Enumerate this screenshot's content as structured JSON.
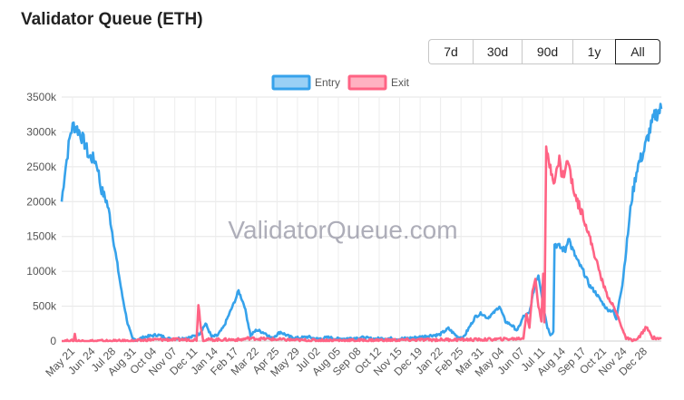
{
  "page_title": "Validator Queue (ETH)",
  "range_buttons": [
    "7d",
    "30d",
    "90d",
    "1y",
    "All"
  ],
  "selected_range": "All",
  "watermark": "ValidatorQueue.com",
  "chart_data": {
    "type": "line",
    "title": "Validator Queue (ETH)",
    "ylim": [
      0,
      3500000
    ],
    "y_ticks": [
      "0",
      "500k",
      "1000k",
      "1500k",
      "2000k",
      "2500k",
      "3000k",
      "3500k"
    ],
    "x_ticks": [
      "May 21",
      "Jun 24",
      "Jul 28",
      "Aug 31",
      "Oct 04",
      "Nov 07",
      "Dec 11",
      "Jan 14",
      "Feb 17",
      "Mar 22",
      "Apr 25",
      "May 29",
      "Jul 02",
      "Aug 05",
      "Sep 08",
      "Oct 12",
      "Nov 15",
      "Dec 19",
      "Jan 22",
      "Feb 25",
      "Mar 31",
      "May 04",
      "Jun 07",
      "Jul 11",
      "Aug 14",
      "Sep 17",
      "Oct 21",
      "Nov 24",
      "Dec 28"
    ],
    "grid": true,
    "legend_position": "top",
    "x_index_range": [
      0,
      1000
    ],
    "series": [
      {
        "name": "Entry",
        "color": "#36a2eb",
        "fill": "#9ad0f5",
        "points": [
          [
            0,
            2000000
          ],
          [
            5,
            2400000
          ],
          [
            10,
            2700000
          ],
          [
            15,
            3000000
          ],
          [
            20,
            3100000
          ],
          [
            30,
            3000000
          ],
          [
            35,
            2900000
          ],
          [
            40,
            2800000
          ],
          [
            45,
            2650000
          ],
          [
            55,
            2600000
          ],
          [
            60,
            2500000
          ],
          [
            65,
            2200000
          ],
          [
            75,
            2000000
          ],
          [
            80,
            1800000
          ],
          [
            90,
            1250000
          ],
          [
            100,
            700000
          ],
          [
            110,
            250000
          ],
          [
            118,
            30000
          ],
          [
            125,
            20000
          ],
          [
            140,
            60000
          ],
          [
            160,
            90000
          ],
          [
            180,
            30000
          ],
          [
            200,
            40000
          ],
          [
            215,
            50000
          ],
          [
            230,
            110000
          ],
          [
            240,
            250000
          ],
          [
            250,
            60000
          ],
          [
            260,
            80000
          ],
          [
            270,
            200000
          ],
          [
            280,
            400000
          ],
          [
            290,
            600000
          ],
          [
            295,
            720000
          ],
          [
            305,
            500000
          ],
          [
            315,
            80000
          ],
          [
            325,
            160000
          ],
          [
            340,
            110000
          ],
          [
            350,
            40000
          ],
          [
            365,
            130000
          ],
          [
            380,
            60000
          ],
          [
            395,
            40000
          ],
          [
            410,
            60000
          ],
          [
            425,
            30000
          ],
          [
            445,
            50000
          ],
          [
            460,
            30000
          ],
          [
            480,
            40000
          ],
          [
            500,
            50000
          ],
          [
            520,
            30000
          ],
          [
            540,
            40000
          ],
          [
            560,
            30000
          ],
          [
            580,
            40000
          ],
          [
            600,
            60000
          ],
          [
            615,
            80000
          ],
          [
            630,
            90000
          ],
          [
            645,
            180000
          ],
          [
            660,
            60000
          ],
          [
            670,
            50000
          ],
          [
            680,
            200000
          ],
          [
            690,
            350000
          ],
          [
            700,
            400000
          ],
          [
            710,
            330000
          ],
          [
            720,
            400000
          ],
          [
            730,
            500000
          ],
          [
            740,
            280000
          ],
          [
            750,
            230000
          ],
          [
            760,
            150000
          ],
          [
            770,
            350000
          ],
          [
            780,
            400000
          ],
          [
            790,
            850000
          ],
          [
            795,
            950000
          ],
          [
            800,
            700000
          ],
          [
            805,
            420000
          ],
          [
            810,
            200000
          ],
          [
            815,
            100000
          ],
          [
            820,
            130000
          ],
          [
            822,
            1400000
          ],
          [
            830,
            1350000
          ],
          [
            840,
            1300000
          ],
          [
            845,
            1500000
          ],
          [
            850,
            1350000
          ],
          [
            860,
            1150000
          ],
          [
            870,
            1000000
          ],
          [
            880,
            800000
          ],
          [
            890,
            700000
          ],
          [
            900,
            570000
          ],
          [
            910,
            450000
          ],
          [
            920,
            430000
          ],
          [
            925,
            300000
          ],
          [
            930,
            600000
          ],
          [
            935,
            800000
          ],
          [
            940,
            1200000
          ],
          [
            950,
            2000000
          ],
          [
            960,
            2500000
          ],
          [
            970,
            2700000
          ],
          [
            980,
            3000000
          ],
          [
            990,
            3250000
          ],
          [
            1000,
            3330000
          ]
        ]
      },
      {
        "name": "Exit",
        "color": "#ff6384",
        "fill": "#ffb1c1",
        "points": [
          [
            0,
            0
          ],
          [
            20,
            0
          ],
          [
            22,
            100000
          ],
          [
            24,
            0
          ],
          [
            120,
            0
          ],
          [
            150,
            20000
          ],
          [
            225,
            20000
          ],
          [
            228,
            530000
          ],
          [
            232,
            200000
          ],
          [
            236,
            20000
          ],
          [
            300,
            20000
          ],
          [
            310,
            40000
          ],
          [
            400,
            10000
          ],
          [
            500,
            10000
          ],
          [
            640,
            20000
          ],
          [
            700,
            20000
          ],
          [
            750,
            30000
          ],
          [
            770,
            40000
          ],
          [
            775,
            400000
          ],
          [
            780,
            200000
          ],
          [
            785,
            700000
          ],
          [
            790,
            900000
          ],
          [
            795,
            500000
          ],
          [
            800,
            300000
          ],
          [
            803,
            1000000
          ],
          [
            805,
            250000
          ],
          [
            808,
            2700000
          ],
          [
            815,
            2500000
          ],
          [
            822,
            2300000
          ],
          [
            830,
            2600000
          ],
          [
            835,
            2350000
          ],
          [
            845,
            2600000
          ],
          [
            850,
            2300000
          ],
          [
            860,
            2000000
          ],
          [
            870,
            1800000
          ],
          [
            880,
            1500000
          ],
          [
            890,
            1200000
          ],
          [
            900,
            900000
          ],
          [
            910,
            650000
          ],
          [
            920,
            500000
          ],
          [
            930,
            300000
          ],
          [
            940,
            50000
          ],
          [
            950,
            10000
          ],
          [
            960,
            20000
          ],
          [
            975,
            200000
          ],
          [
            985,
            50000
          ],
          [
            1000,
            30000
          ]
        ]
      }
    ]
  }
}
